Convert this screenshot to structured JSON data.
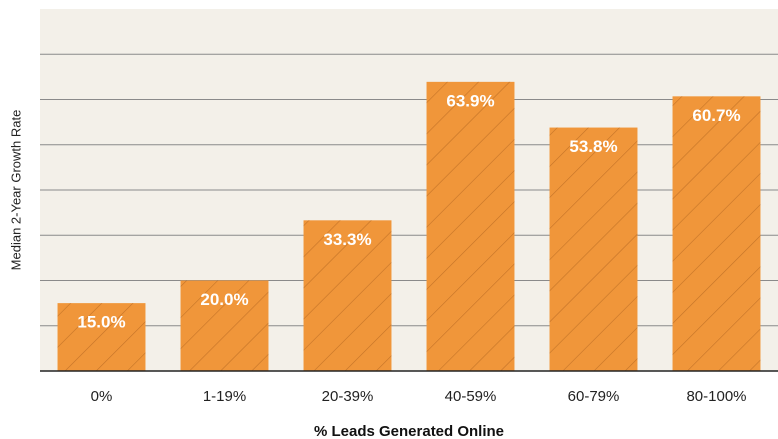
{
  "chart_data": {
    "type": "bar",
    "x_label": "% Leads Generated Online",
    "y_label": "Median 2-Year Growth Rate",
    "categories": [
      "0%",
      "1-19%",
      "20-39%",
      "40-59%",
      "60-79%",
      "80-100%"
    ],
    "values": [
      15.0,
      20.0,
      33.3,
      63.9,
      53.8,
      60.7
    ],
    "value_labels": [
      "15.0%",
      "20.0%",
      "33.3%",
      "63.9%",
      "53.8%",
      "60.7%"
    ],
    "color": "#f0963a",
    "ylim": [
      0,
      80
    ],
    "yticks": [
      0,
      10,
      20,
      30,
      40,
      50,
      60,
      70
    ],
    "grid": true
  }
}
